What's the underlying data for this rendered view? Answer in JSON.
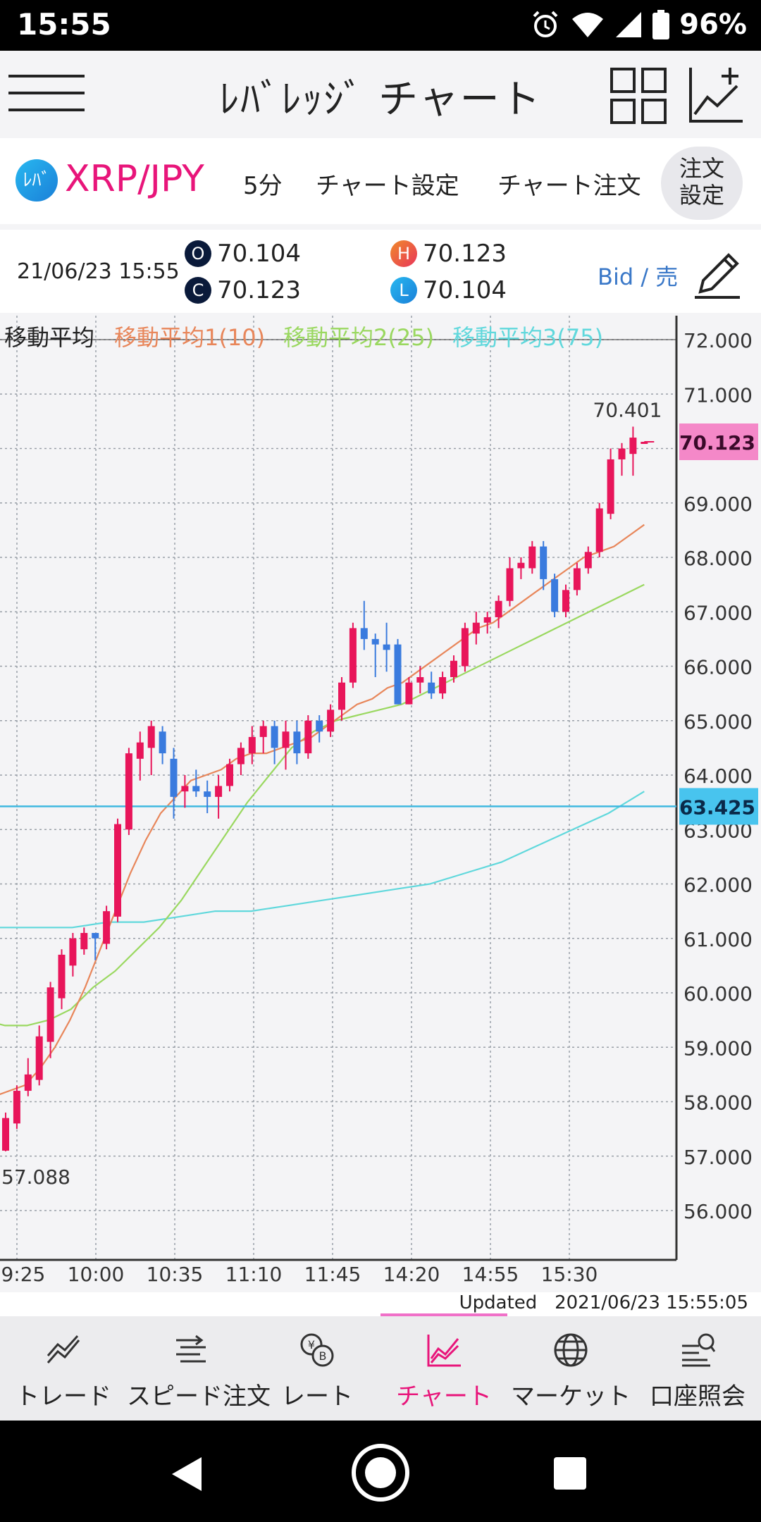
{
  "status": {
    "time": "15:55",
    "battery": "96%"
  },
  "appbar": {
    "title": "ﾚﾊﾞﾚｯｼﾞ チャート"
  },
  "pair": {
    "logo": "ﾚﾊﾞ",
    "name": "XRP/JPY",
    "interval": "5分",
    "chart_settings": "チャート設定",
    "chart_order": "チャート注文",
    "order_settings_line1": "注文",
    "order_settings_line2": "設定"
  },
  "ohlc": {
    "datetime": "21/06/23 15:55",
    "open_badge": "O",
    "open": "70.104",
    "close_badge": "C",
    "close": "70.123",
    "high_badge": "H",
    "high": "70.123",
    "low_badge": "L",
    "low": "70.104",
    "side": "Bid / 売"
  },
  "chart_data": {
    "type": "candlestick",
    "legend": [
      "移動平均",
      "移動平均1(10)",
      "移動平均2(25)",
      "移動平均3(75)"
    ],
    "legend_colors": [
      "#222222",
      "#e8865a",
      "#9ad860",
      "#60d8dc"
    ],
    "y_ticks": [
      "72.000",
      "71.000",
      "70.000",
      "69.000",
      "68.000",
      "67.000",
      "66.000",
      "65.000",
      "64.000",
      "63.000",
      "62.000",
      "61.000",
      "60.000",
      "59.000",
      "58.000",
      "57.000",
      "56.000"
    ],
    "ylim": [
      55.2,
      72.2
    ],
    "x_ticks": [
      "09:25",
      "10:00",
      "10:35",
      "11:10",
      "11:45",
      "14:20",
      "14:55",
      "15:30"
    ],
    "current_price": "70.123",
    "line_price": "63.425",
    "line_value": 63.425,
    "max_label": "70.401",
    "min_label": "57.088",
    "up_color": "#e8155a",
    "down_color": "#3a7bde",
    "candles": [
      {
        "o": 57.1,
        "h": 57.8,
        "l": 57.088,
        "c": 57.7
      },
      {
        "o": 57.6,
        "h": 58.3,
        "l": 57.5,
        "c": 58.2
      },
      {
        "o": 58.2,
        "h": 58.8,
        "l": 58.1,
        "c": 58.5
      },
      {
        "o": 58.4,
        "h": 59.4,
        "l": 58.3,
        "c": 59.2
      },
      {
        "o": 59.1,
        "h": 60.2,
        "l": 58.8,
        "c": 60.1
      },
      {
        "o": 59.9,
        "h": 60.8,
        "l": 59.7,
        "c": 60.7
      },
      {
        "o": 60.5,
        "h": 61.1,
        "l": 60.3,
        "c": 61.0
      },
      {
        "o": 60.8,
        "h": 61.2,
        "l": 60.7,
        "c": 61.1
      },
      {
        "o": 61.1,
        "h": 61.0,
        "l": 60.6,
        "c": 61.0
      },
      {
        "o": 60.9,
        "h": 61.6,
        "l": 60.8,
        "c": 61.5
      },
      {
        "o": 61.4,
        "h": 63.2,
        "l": 61.3,
        "c": 63.1
      },
      {
        "o": 63.0,
        "h": 64.5,
        "l": 62.9,
        "c": 64.4
      },
      {
        "o": 64.3,
        "h": 64.8,
        "l": 63.9,
        "c": 64.6
      },
      {
        "o": 64.5,
        "h": 65.0,
        "l": 64.0,
        "c": 64.9
      },
      {
        "o": 64.8,
        "h": 64.9,
        "l": 64.2,
        "c": 64.4
      },
      {
        "o": 64.3,
        "h": 64.5,
        "l": 63.2,
        "c": 63.6
      },
      {
        "o": 63.7,
        "h": 64.0,
        "l": 63.4,
        "c": 63.8
      },
      {
        "o": 63.8,
        "h": 64.1,
        "l": 63.6,
        "c": 63.7
      },
      {
        "o": 63.7,
        "h": 63.9,
        "l": 63.3,
        "c": 63.6
      },
      {
        "o": 63.6,
        "h": 64.0,
        "l": 63.2,
        "c": 63.8
      },
      {
        "o": 63.8,
        "h": 64.3,
        "l": 63.7,
        "c": 64.2
      },
      {
        "o": 64.2,
        "h": 64.6,
        "l": 64.0,
        "c": 64.5
      },
      {
        "o": 64.4,
        "h": 64.9,
        "l": 64.2,
        "c": 64.7
      },
      {
        "o": 64.7,
        "h": 65.0,
        "l": 64.4,
        "c": 64.9
      },
      {
        "o": 64.9,
        "h": 65.0,
        "l": 64.2,
        "c": 64.5
      },
      {
        "o": 64.5,
        "h": 65.0,
        "l": 64.1,
        "c": 64.8
      },
      {
        "o": 64.8,
        "h": 65.0,
        "l": 64.2,
        "c": 64.4
      },
      {
        "o": 64.4,
        "h": 65.1,
        "l": 64.3,
        "c": 65.0
      },
      {
        "o": 65.0,
        "h": 65.1,
        "l": 64.6,
        "c": 64.8
      },
      {
        "o": 64.8,
        "h": 65.3,
        "l": 64.7,
        "c": 65.2
      },
      {
        "o": 65.2,
        "h": 65.8,
        "l": 65.0,
        "c": 65.7
      },
      {
        "o": 65.7,
        "h": 66.8,
        "l": 65.6,
        "c": 66.7
      },
      {
        "o": 66.7,
        "h": 67.2,
        "l": 66.3,
        "c": 66.5
      },
      {
        "o": 66.5,
        "h": 66.6,
        "l": 65.8,
        "c": 66.4
      },
      {
        "o": 66.4,
        "h": 66.8,
        "l": 65.9,
        "c": 66.3
      },
      {
        "o": 66.4,
        "h": 66.5,
        "l": 65.3,
        "c": 65.3
      },
      {
        "o": 65.3,
        "h": 65.8,
        "l": 65.3,
        "c": 65.7
      },
      {
        "o": 65.7,
        "h": 66.0,
        "l": 65.5,
        "c": 65.8
      },
      {
        "o": 65.7,
        "h": 65.9,
        "l": 65.4,
        "c": 65.5
      },
      {
        "o": 65.5,
        "h": 65.9,
        "l": 65.4,
        "c": 65.8
      },
      {
        "o": 65.8,
        "h": 66.2,
        "l": 65.7,
        "c": 66.1
      },
      {
        "o": 66.0,
        "h": 66.8,
        "l": 65.9,
        "c": 66.7
      },
      {
        "o": 66.6,
        "h": 67.0,
        "l": 66.4,
        "c": 66.8
      },
      {
        "o": 66.8,
        "h": 67.0,
        "l": 66.6,
        "c": 66.9
      },
      {
        "o": 66.9,
        "h": 67.3,
        "l": 66.7,
        "c": 67.2
      },
      {
        "o": 67.2,
        "h": 68.0,
        "l": 67.1,
        "c": 67.8
      },
      {
        "o": 67.8,
        "h": 68.0,
        "l": 67.6,
        "c": 67.9
      },
      {
        "o": 67.8,
        "h": 68.3,
        "l": 67.7,
        "c": 68.2
      },
      {
        "o": 68.2,
        "h": 68.3,
        "l": 67.4,
        "c": 67.6
      },
      {
        "o": 67.6,
        "h": 67.7,
        "l": 66.9,
        "c": 67.0
      },
      {
        "o": 67.0,
        "h": 67.5,
        "l": 66.9,
        "c": 67.4
      },
      {
        "o": 67.4,
        "h": 67.9,
        "l": 67.3,
        "c": 67.8
      },
      {
        "o": 67.8,
        "h": 68.2,
        "l": 67.7,
        "c": 68.1
      },
      {
        "o": 68.1,
        "h": 69.0,
        "l": 68.0,
        "c": 68.9
      },
      {
        "o": 68.8,
        "h": 70.0,
        "l": 68.7,
        "c": 69.8
      },
      {
        "o": 69.8,
        "h": 70.1,
        "l": 69.5,
        "c": 70.0
      },
      {
        "o": 69.9,
        "h": 70.401,
        "l": 69.5,
        "c": 70.2
      },
      {
        "o": 70.104,
        "h": 70.123,
        "l": 70.104,
        "c": 70.123
      }
    ],
    "ma1": [
      58.1,
      58.2,
      58.3,
      58.6,
      59.0,
      59.5,
      60.1,
      60.8,
      61.5,
      62.2,
      62.8,
      63.3,
      63.6,
      63.9,
      64.0,
      64.1,
      64.3,
      64.4,
      64.4,
      64.5,
      64.6,
      64.7,
      64.9,
      65.1,
      65.3,
      65.4,
      65.6,
      65.7,
      65.9,
      66.1,
      66.3,
      66.5,
      66.7,
      66.8,
      67.0,
      67.2,
      67.4,
      67.6,
      67.8,
      68.0,
      68.1,
      68.2,
      68.4,
      68.6
    ],
    "ma2": [
      59.7,
      59.5,
      59.4,
      59.4,
      59.5,
      59.7,
      60.1,
      60.4,
      60.8,
      61.2,
      61.7,
      62.3,
      62.9,
      63.5,
      64.0,
      64.5,
      64.8,
      65.0,
      65.1,
      65.2,
      65.3,
      65.5,
      65.7,
      65.9,
      66.1,
      66.3,
      66.5,
      66.7,
      66.9,
      67.1,
      67.3,
      67.5
    ],
    "ma3": [
      61.5,
      61.3,
      61.2,
      61.2,
      61.2,
      61.2,
      61.3,
      61.3,
      61.4,
      61.5,
      61.5,
      61.6,
      61.7,
      61.8,
      61.9,
      62.0,
      62.2,
      62.4,
      62.7,
      63.0,
      63.3,
      63.7
    ]
  },
  "updated": {
    "label": "Updated",
    "timestamp": "2021/06/23  15:55:05"
  },
  "bottomnav": [
    {
      "label": "トレード"
    },
    {
      "label": "スピード注文"
    },
    {
      "label": "レート"
    },
    {
      "label": "チャート"
    },
    {
      "label": "マーケット"
    },
    {
      "label": "口座照会"
    }
  ]
}
